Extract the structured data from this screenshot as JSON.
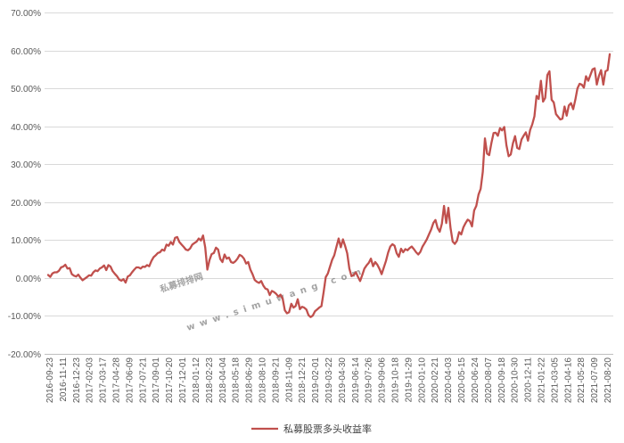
{
  "colors": {
    "series": "#c0504d",
    "grid": "#d9d9d9"
  },
  "watermark": {
    "text": "私募排排网",
    "url": "www.simuwang.com"
  },
  "chart_data": {
    "type": "line",
    "title": "",
    "xlabel": "",
    "ylabel": "",
    "ylim": [
      -20,
      70
    ],
    "y_ticks": [
      -20,
      -10,
      0,
      10,
      20,
      30,
      40,
      50,
      60,
      70
    ],
    "y_tick_labels": [
      "-20.00%",
      "-10.00%",
      "0.00%",
      "10.00%",
      "20.00%",
      "30.00%",
      "40.00%",
      "50.00%",
      "60.00%",
      "70.00%"
    ],
    "x_tick_labels": [
      "2016-09-23",
      "2016-11-11",
      "2016-12-23",
      "2017-02-03",
      "2017-03-17",
      "2017-04-28",
      "2017-06-09",
      "2017-07-21",
      "2017-09-01",
      "2017-10-20",
      "2017-12-01",
      "2018-01-12",
      "2018-02-23",
      "2018-04-04",
      "2018-05-18",
      "2018-06-29",
      "2018-08-10",
      "2018-09-21",
      "2018-11-09",
      "2018-12-21",
      "2019-02-01",
      "2019-03-22",
      "2019-04-30",
      "2019-06-14",
      "2019-07-26",
      "2019-09-06",
      "2019-10-18",
      "2019-11-29",
      "2020-01-10",
      "2020-02-21",
      "2020-04-03",
      "2020-05-15",
      "2020-06-24",
      "2020-08-07",
      "2020-09-18",
      "2020-10-30",
      "2020-12-11",
      "2021-01-22",
      "2021-03-05",
      "2021-04-16",
      "2021-05-28",
      "2021-07-09",
      "2021-08-20"
    ],
    "legend_position": "bottom",
    "grid": true,
    "series": [
      {
        "name": "私募股票多头收益率",
        "values": [
          0.8,
          0.3,
          1.2,
          1.5,
          1.5,
          1.9,
          2.8,
          3.0,
          3.5,
          2.5,
          2.6,
          1.0,
          0.6,
          0.4,
          0.9,
          0.1,
          -0.6,
          -0.2,
          0.2,
          0.7,
          0.6,
          1.5,
          2.0,
          1.8,
          2.5,
          2.8,
          3.3,
          2.1,
          3.4,
          3.0,
          1.8,
          1.1,
          0.5,
          -0.4,
          -0.7,
          -0.3,
          -1.2,
          0.4,
          0.7,
          1.5,
          2.2,
          2.8,
          2.8,
          2.5,
          3.0,
          2.9,
          3.4,
          3.1,
          4.5,
          5.5,
          6.0,
          6.6,
          6.8,
          7.5,
          7.2,
          8.8,
          8.5,
          9.5,
          8.8,
          10.6,
          10.8,
          9.5,
          8.8,
          8.2,
          7.5,
          7.3,
          7.8,
          8.8,
          9.2,
          9.6,
          10.4,
          9.9,
          11.2,
          8.1,
          2.2,
          4.7,
          6.3,
          6.6,
          8.0,
          7.5,
          5.0,
          4.2,
          6.2,
          5.1,
          5.4,
          4.2,
          4.0,
          4.4,
          5.1,
          6.1,
          5.8,
          5.1,
          3.8,
          4.2,
          2.2,
          1.0,
          -0.5,
          -1.0,
          -1.3,
          -0.8,
          -2.0,
          -2.8,
          -3.0,
          -4.5,
          -3.4,
          -3.7,
          -4.2,
          -4.9,
          -4.4,
          -5.4,
          -8.5,
          -9.3,
          -9.0,
          -6.8,
          -7.8,
          -7.4,
          -5.6,
          -8.2,
          -7.6,
          -7.8,
          -8.3,
          -9.8,
          -10.3,
          -9.9,
          -8.8,
          -8.3,
          -7.8,
          -7.4,
          -3.8,
          0.2,
          1.2,
          3.0,
          4.8,
          6.0,
          8.2,
          10.4,
          8.1,
          10.2,
          8.5,
          6.5,
          2.5,
          0.5,
          0.8,
          1.5,
          0.3,
          -0.8,
          0.8,
          2.5,
          3.3,
          4.0,
          5.1,
          3.1,
          4.2,
          3.5,
          2.4,
          1.0,
          2.8,
          4.5,
          6.7,
          8.3,
          8.9,
          8.5,
          6.5,
          5.6,
          7.7,
          6.8,
          7.6,
          7.3,
          7.9,
          8.3,
          7.6,
          6.8,
          6.2,
          6.9,
          8.3,
          9.2,
          10.2,
          11.5,
          12.8,
          14.5,
          15.3,
          13.2,
          12.2,
          14.3,
          19.0,
          14.5,
          18.5,
          13.2,
          9.6,
          9.0,
          9.8,
          12.1,
          11.5,
          13.4,
          14.5,
          15.4,
          15.0,
          13.6,
          17.8,
          19.0,
          22.0,
          23.5,
          28.0,
          36.8,
          32.8,
          32.4,
          35.5,
          38.2,
          38.3,
          37.5,
          39.5,
          38.9,
          39.8,
          35.0,
          32.1,
          32.6,
          35.5,
          37.4,
          34.3,
          34.0,
          36.5,
          37.5,
          38.4,
          36.2,
          39.0,
          40.5,
          42.6,
          48.0,
          47.2,
          52.0,
          46.5,
          47.5,
          53.5,
          54.5,
          47.0,
          46.3,
          43.2,
          42.5,
          41.8,
          42.0,
          45.2,
          42.8,
          45.5,
          46.1,
          44.5,
          47.0,
          50.0,
          51.2,
          51.0,
          50.2,
          53.2,
          52.0,
          53.5,
          55.0,
          55.3,
          51.0,
          53.3,
          54.8,
          51.0,
          54.5,
          54.8,
          59.0
        ]
      }
    ]
  }
}
